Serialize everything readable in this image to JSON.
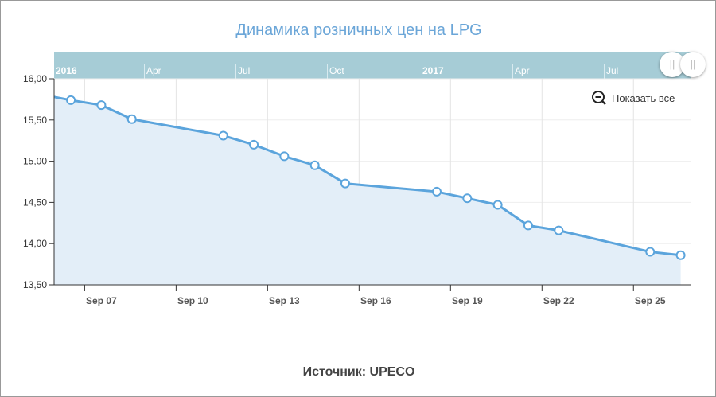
{
  "chart_data": {
    "type": "area",
    "title": "Динамика розничных цен на LPG",
    "xlabel": "",
    "ylabel": "",
    "x_unit": "day of September",
    "x": [
      5.45,
      6,
      7,
      8,
      11,
      12,
      13,
      14,
      15,
      18,
      19,
      20,
      21,
      22,
      25,
      26
    ],
    "values": [
      15.78,
      15.74,
      15.68,
      15.51,
      15.31,
      15.2,
      15.06,
      14.95,
      14.73,
      14.63,
      14.55,
      14.47,
      14.22,
      14.16,
      13.9,
      13.86
    ],
    "markers": [
      false,
      true,
      true,
      true,
      true,
      true,
      true,
      true,
      true,
      true,
      true,
      true,
      true,
      true,
      true,
      true
    ],
    "xlim": [
      5.45,
      26.35
    ],
    "ylim": [
      13.5,
      16.0
    ],
    "xticks": [
      7,
      10,
      13,
      16,
      19,
      22,
      25
    ],
    "xtick_labels": [
      "Sep 07",
      "Sep 10",
      "Sep 13",
      "Sep 16",
      "Sep 19",
      "Sep 22",
      "Sep 25"
    ],
    "yticks": [
      13.5,
      14.0,
      14.5,
      15.0,
      15.5,
      16.0
    ],
    "ytick_labels": [
      "13,50",
      "14,00",
      "14,50",
      "15,00",
      "15,50",
      "16,00"
    ],
    "grid": true,
    "colors": {
      "line": "#5ba4dc",
      "fill": "#e3eef8",
      "navigator": "#a6ccd6",
      "title": "#6ba6d8"
    }
  },
  "navigator": {
    "labels": [
      {
        "text": "2016",
        "bold": true
      },
      {
        "text": "Apr"
      },
      {
        "text": "Jul"
      },
      {
        "text": "Oct"
      },
      {
        "text": "2017",
        "bold": true
      },
      {
        "text": "Apr"
      },
      {
        "text": "Jul"
      }
    ]
  },
  "reset_zoom_label": "Показать все",
  "handle_glyph": "||",
  "footer": "Источник: UPECO"
}
